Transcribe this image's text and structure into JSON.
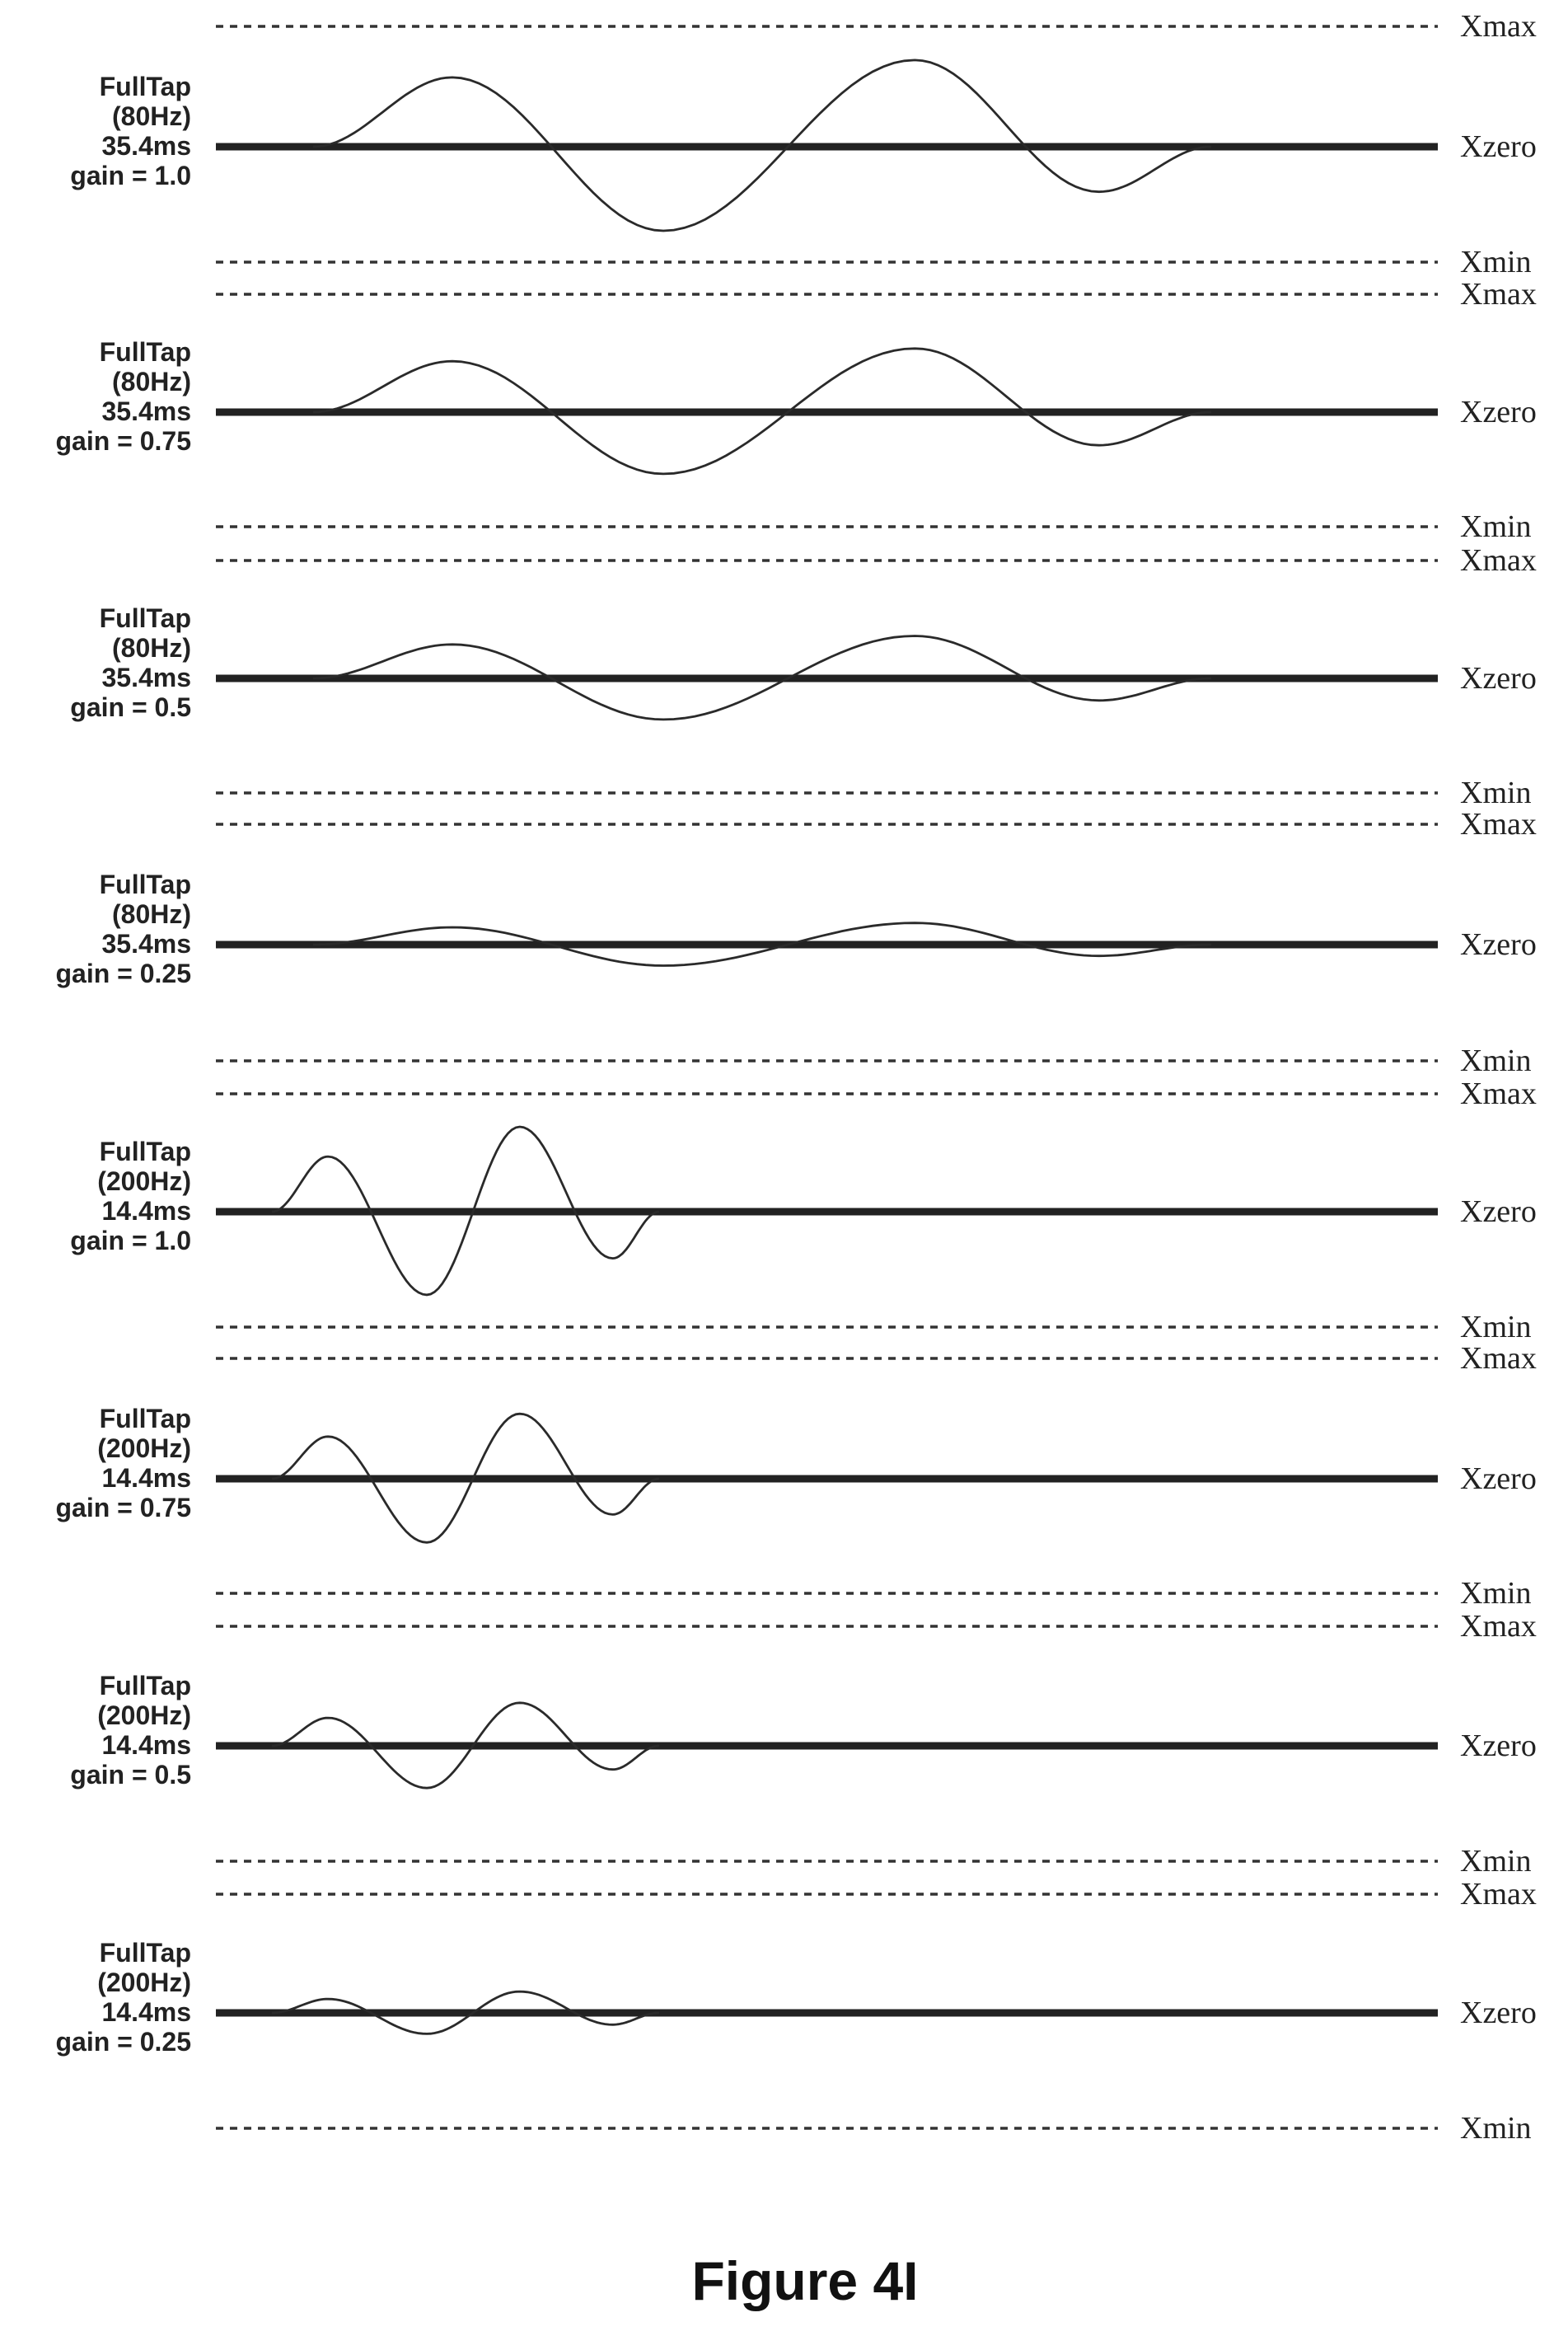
{
  "level_labels": {
    "max": "Xmax",
    "zero": "Xzero",
    "min": "Xmin"
  },
  "panels": [
    {
      "name": "FullTap",
      "frequency": "(80Hz)",
      "duration": "35.4ms",
      "gain_text": "gain = 1.0",
      "frequency_hz": 80,
      "gain": 1.0
    },
    {
      "name": "FullTap",
      "frequency": "(80Hz)",
      "duration": "35.4ms",
      "gain_text": "gain = 0.75",
      "frequency_hz": 80,
      "gain": 0.75
    },
    {
      "name": "FullTap",
      "frequency": "(80Hz)",
      "duration": "35.4ms",
      "gain_text": "gain = 0.5",
      "frequency_hz": 80,
      "gain": 0.5
    },
    {
      "name": "FullTap",
      "frequency": "(80Hz)",
      "duration": "35.4ms",
      "gain_text": "gain = 0.25",
      "frequency_hz": 80,
      "gain": 0.25
    },
    {
      "name": "FullTap",
      "frequency": "(200Hz)",
      "duration": "14.4ms",
      "gain_text": "gain = 1.0",
      "frequency_hz": 200,
      "gain": 1.0
    },
    {
      "name": "FullTap",
      "frequency": "(200Hz)",
      "duration": "14.4ms",
      "gain_text": "gain = 0.75",
      "frequency_hz": 200,
      "gain": 0.75
    },
    {
      "name": "FullTap",
      "frequency": "(200Hz)",
      "duration": "14.4ms",
      "gain_text": "gain = 0.5",
      "frequency_hz": 200,
      "gain": 0.5
    },
    {
      "name": "FullTap",
      "frequency": "(200Hz)",
      "duration": "14.4ms",
      "gain_text": "gain = 0.25",
      "frequency_hz": 200,
      "gain": 0.25
    }
  ],
  "caption": "Figure 4I"
}
